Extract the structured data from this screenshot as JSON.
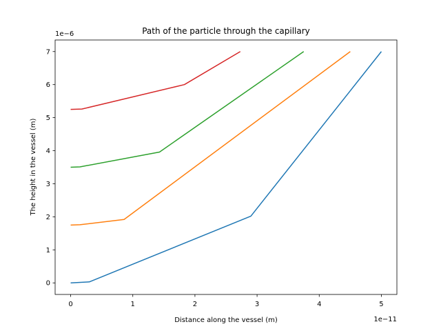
{
  "chart_data": {
    "type": "line",
    "title": "Path of the particle through the capillary",
    "xlabel": "Distance along the vessel (m)",
    "ylabel": "The height in the vessel (m)",
    "x_offset_label": "1e−11",
    "y_offset_label": "1e−6",
    "xlim": [
      -0.25,
      5.25
    ],
    "ylim": [
      -0.35,
      7.35
    ],
    "x_ticks": [
      0,
      1,
      2,
      3,
      4,
      5
    ],
    "y_ticks": [
      0,
      1,
      2,
      3,
      4,
      5,
      6,
      7
    ],
    "grid": false,
    "series": [
      {
        "color": "#1f77b4",
        "x": [
          0,
          0.3,
          2.9,
          5.0
        ],
        "y": [
          0,
          0.03,
          2.02,
          7.0
        ]
      },
      {
        "color": "#ff7f0e",
        "x": [
          0,
          0.15,
          0.86,
          4.5
        ],
        "y": [
          1.75,
          1.76,
          1.92,
          7.0
        ]
      },
      {
        "color": "#2ca02c",
        "x": [
          0,
          0.15,
          1.43,
          3.75
        ],
        "y": [
          3.5,
          3.51,
          3.96,
          7.0
        ]
      },
      {
        "color": "#d62728",
        "x": [
          0,
          0.18,
          1.83,
          2.73
        ],
        "y": [
          5.25,
          5.26,
          6.0,
          7.0
        ]
      }
    ]
  }
}
